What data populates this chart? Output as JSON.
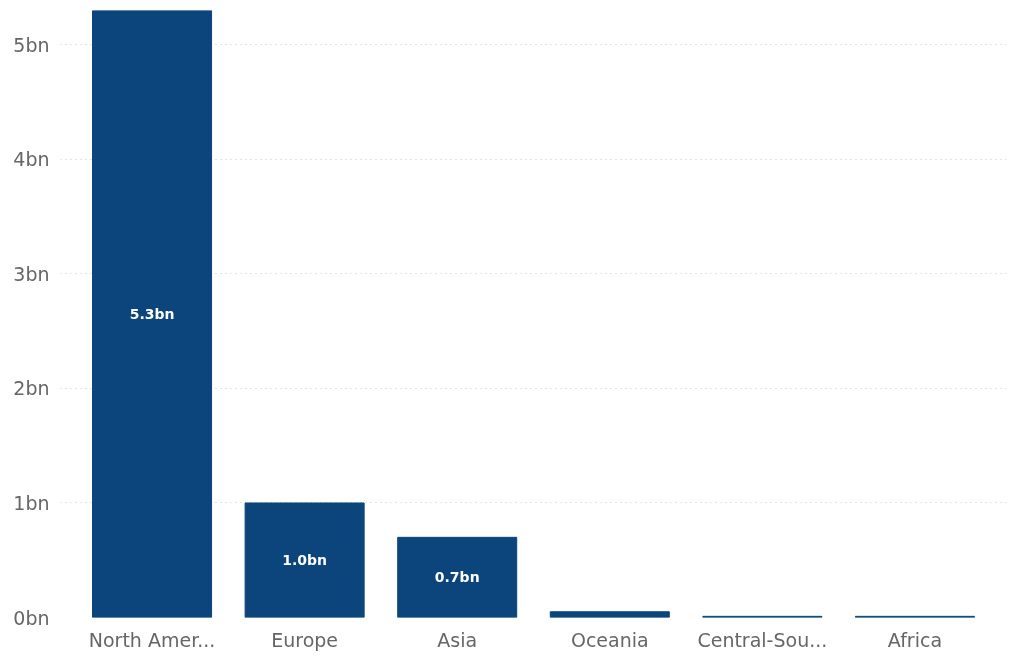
{
  "chart_data": {
    "type": "bar",
    "categories": [
      "North Amer...",
      "Europe",
      "Asia",
      "Oceania",
      "Central-Sou...",
      "Africa"
    ],
    "values": [
      5.3,
      1.0,
      0.7,
      0.05,
      0.01,
      0.01
    ],
    "color": "#0b457c",
    "value_labels": [
      "5.3bn",
      "1.0bn",
      "0.7bn",
      null,
      null,
      null
    ],
    "ylim": [
      0,
      5.3
    ],
    "yticks": [
      {
        "value": 0,
        "label": "0bn"
      },
      {
        "value": 1,
        "label": "1bn"
      },
      {
        "value": 2,
        "label": "2bn"
      },
      {
        "value": 3,
        "label": "3bn"
      },
      {
        "value": 4,
        "label": "4bn"
      },
      {
        "value": 5,
        "label": "5bn"
      }
    ],
    "grid": "y"
  }
}
